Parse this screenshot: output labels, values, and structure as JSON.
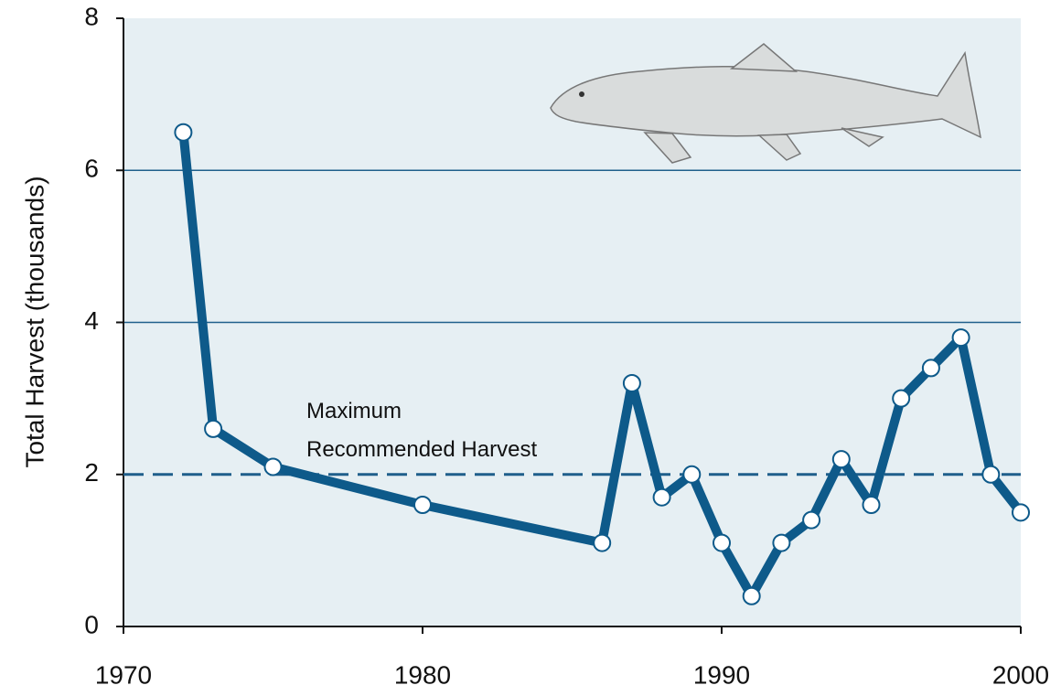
{
  "chart_data": {
    "type": "line",
    "y_label": "Total Harvest (thousands)",
    "x": [
      1972,
      1973,
      1975,
      1980,
      1986,
      1987,
      1988,
      1989,
      1990,
      1991,
      1992,
      1993,
      1994,
      1995,
      1996,
      1997,
      1998,
      1999,
      2000
    ],
    "series": [
      {
        "color": "#0e5a8a",
        "values": [
          6.5,
          2.6,
          2.1,
          1.6,
          1.1,
          3.2,
          1.7,
          2.0,
          1.1,
          0.4,
          1.1,
          1.4,
          2.2,
          1.6,
          3.0,
          3.4,
          3.8,
          2.0,
          1.5
        ]
      }
    ],
    "xlim": [
      1970,
      2000
    ],
    "xticks": [
      1970,
      1980,
      1990,
      2000
    ],
    "ylim": [
      0,
      8
    ],
    "yticks": [
      0,
      2,
      4,
      6,
      8
    ],
    "grid": true,
    "reference_line": {
      "value": 2,
      "label": [
        "Maximum",
        "Recommended Harvest"
      ],
      "style": "dashed"
    }
  }
}
